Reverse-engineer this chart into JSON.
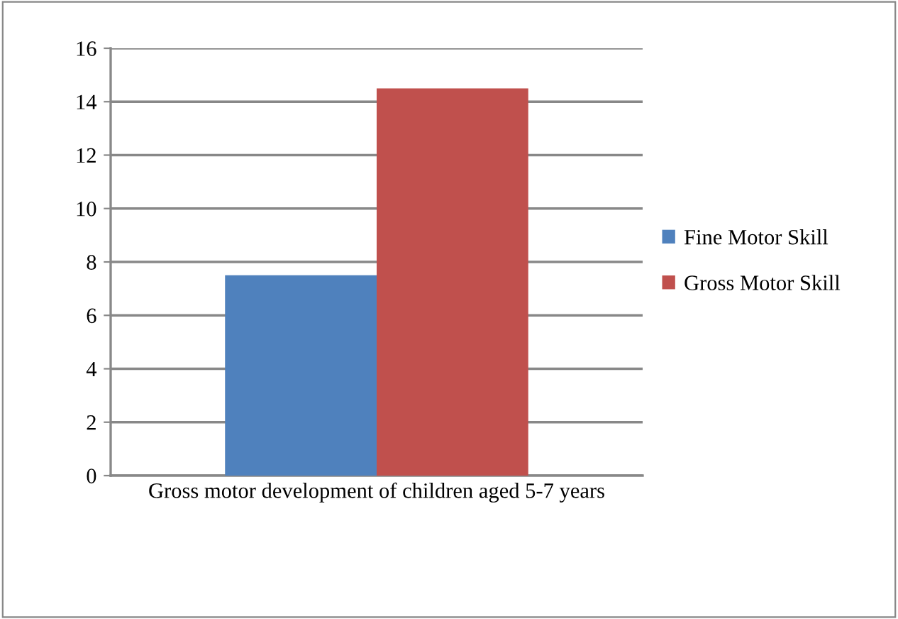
{
  "chart_data": {
    "type": "bar",
    "categories": [
      "Gross motor development of children aged 5-7 years"
    ],
    "series": [
      {
        "name": "Fine Motor Skill",
        "color": "#4f81bd",
        "values": [
          7.5
        ]
      },
      {
        "name": "Gross Motor Skill",
        "color": "#c0504d",
        "values": [
          14.5
        ]
      }
    ],
    "ylim": [
      0,
      16
    ],
    "yticks": [
      0,
      2,
      4,
      6,
      8,
      10,
      12,
      14,
      16
    ],
    "grid": "y",
    "legend": "right"
  }
}
